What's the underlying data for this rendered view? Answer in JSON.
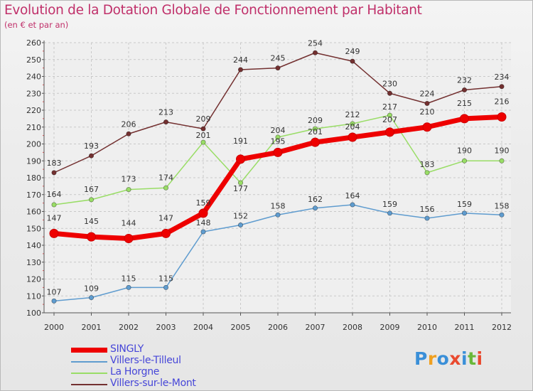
{
  "header": {
    "title": "Evolution de la Dotation Globale de Fonctionnement par Habitant",
    "subtitle": "(en € et par an)"
  },
  "logo": {
    "letters": [
      "P",
      "r",
      "o",
      "x",
      "i",
      "t",
      "i"
    ],
    "colors": [
      "#3a8fd8",
      "#f0a020",
      "#3a8fd8",
      "#e94a2f",
      "#3a8fd8",
      "#6ab83a",
      "#e94a2f"
    ]
  },
  "chart_data": {
    "type": "line",
    "title": "Evolution de la Dotation Globale de Fonctionnement par Habitant",
    "subtitle": "(en € et par an)",
    "xlabel": "",
    "ylabel": "",
    "categories": [
      "2000",
      "2001",
      "2002",
      "2003",
      "2004",
      "2005",
      "2006",
      "2007",
      "2008",
      "2009",
      "2010",
      "2011",
      "2012"
    ],
    "ylim": [
      100,
      260
    ],
    "yticks": [
      100,
      110,
      120,
      130,
      140,
      150,
      160,
      170,
      180,
      190,
      200,
      210,
      220,
      230,
      240,
      250,
      260
    ],
    "grid": true,
    "legend_position": "bottom-left",
    "series": [
      {
        "name": "SINGLY",
        "color": "#ee0000",
        "emphasis": true,
        "values": [
          147,
          145,
          144,
          147,
          159,
          191,
          195,
          201,
          204,
          207,
          210,
          215,
          216
        ]
      },
      {
        "name": "Villers-le-Tilleul",
        "color": "#5f9ccf",
        "emphasis": false,
        "values": [
          107,
          109,
          115,
          115,
          148,
          152,
          158,
          162,
          164,
          159,
          156,
          159,
          158
        ]
      },
      {
        "name": "La Horgne",
        "color": "#99dd66",
        "emphasis": false,
        "values": [
          164,
          167,
          173,
          174,
          201,
          177,
          204,
          209,
          212,
          217,
          183,
          190,
          190
        ]
      },
      {
        "name": "Villers-sur-le-Mont",
        "color": "#733030",
        "emphasis": false,
        "values": [
          183,
          193,
          206,
          213,
          209,
          244,
          245,
          254,
          249,
          230,
          224,
          232,
          234
        ]
      }
    ]
  }
}
